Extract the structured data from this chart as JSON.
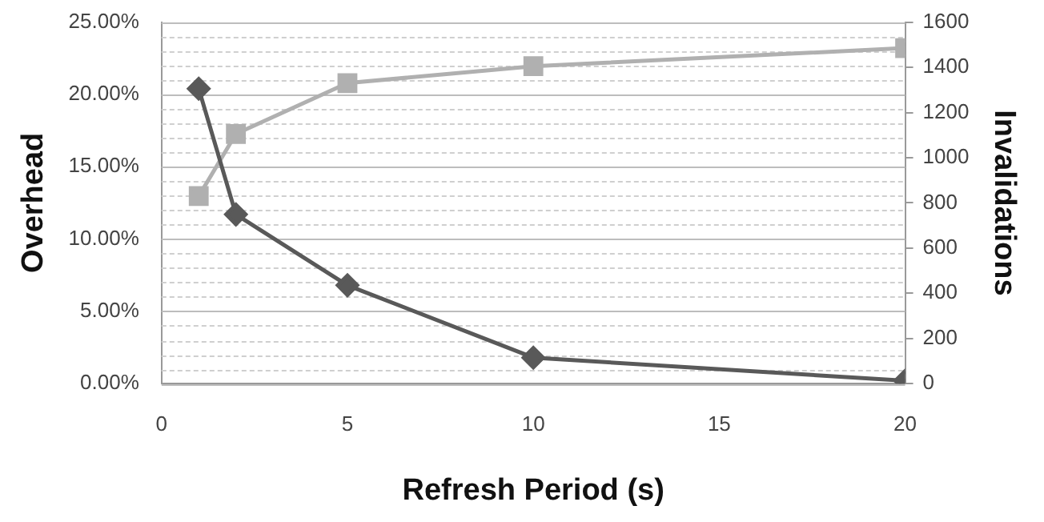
{
  "chart_data": {
    "type": "line",
    "xlabel": "Refresh Period (s)",
    "ylabel": "Overhead",
    "y2label": "Invalidations",
    "x": [
      1,
      2,
      5,
      10,
      20
    ],
    "series": [
      {
        "color": "#595959",
        "marker": "diamond",
        "values": [
          20.4,
          11.7,
          6.8,
          1.8,
          0.2
        ]
      },
      {
        "color": "#b0b0b0",
        "marker": "square",
        "axis": "y2",
        "values": [
          830,
          1105,
          1330,
          1405,
          1485
        ]
      }
    ],
    "xlim": [
      0,
      20
    ],
    "xticks": [
      0,
      5,
      10,
      15,
      20
    ],
    "ylim": [
      0,
      25
    ],
    "yticks": [
      {
        "value": 0,
        "label": "0.00%"
      },
      {
        "value": 1,
        "label": null
      },
      {
        "value": 2,
        "label": null
      },
      {
        "value": 3,
        "label": null
      },
      {
        "value": 4,
        "label": null
      },
      {
        "value": 5,
        "label": "5.00%"
      },
      {
        "value": 6,
        "label": null
      },
      {
        "value": 7,
        "label": null
      },
      {
        "value": 8,
        "label": null
      },
      {
        "value": 9,
        "label": null
      },
      {
        "value": 10,
        "label": "10.00%"
      },
      {
        "value": 11,
        "label": null
      },
      {
        "value": 12,
        "label": null
      },
      {
        "value": 13,
        "label": null
      },
      {
        "value": 14,
        "label": null
      },
      {
        "value": 15,
        "label": "15.00%"
      },
      {
        "value": 16,
        "label": null
      },
      {
        "value": 17,
        "label": null
      },
      {
        "value": 18,
        "label": null
      },
      {
        "value": 19,
        "label": null
      },
      {
        "value": 20,
        "label": "20.00%"
      },
      {
        "value": 21,
        "label": null
      },
      {
        "value": 22,
        "label": null
      },
      {
        "value": 23,
        "label": null
      },
      {
        "value": 24,
        "label": null
      },
      {
        "value": 25,
        "label": "25.00%"
      }
    ],
    "y2lim": [
      0,
      1600
    ],
    "y2ticks": [
      0,
      200,
      400,
      600,
      800,
      1000,
      1200,
      1400,
      1600
    ],
    "grid": "y",
    "legend": false,
    "line_style": "solid"
  }
}
